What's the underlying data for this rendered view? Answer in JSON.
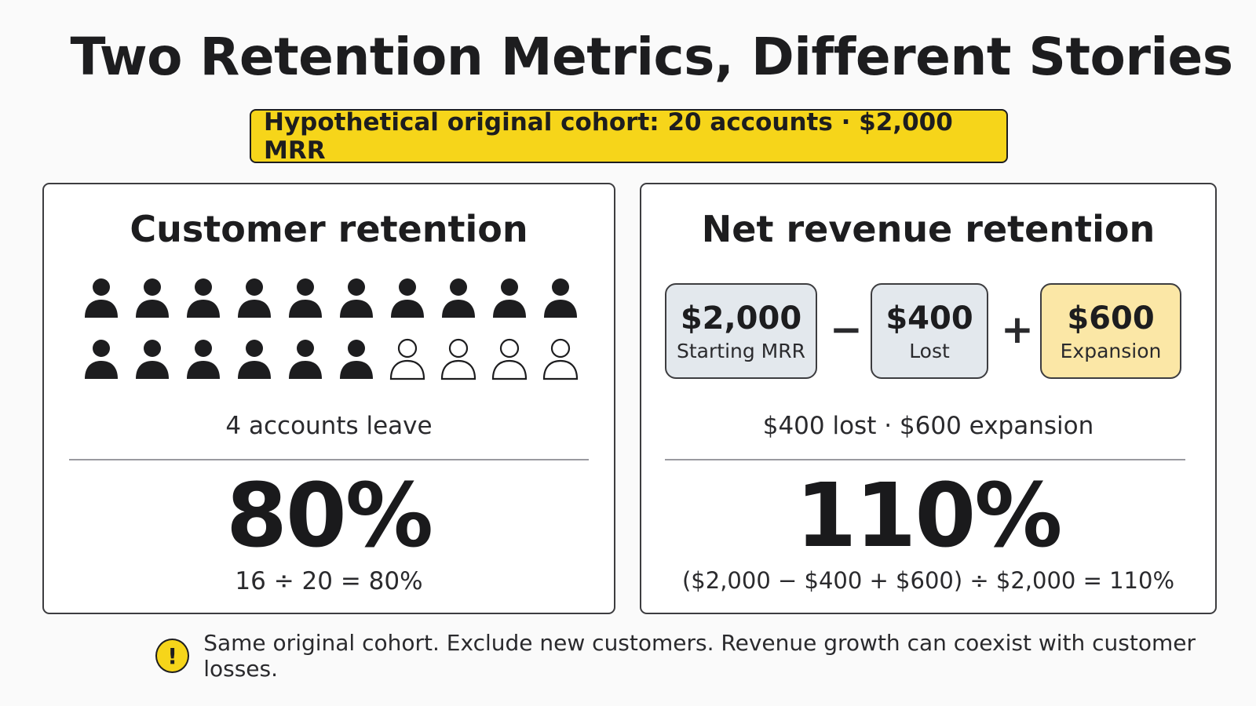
{
  "title": "Two Retention Metrics, Different Stories",
  "banner": "Hypothetical original cohort: 20 accounts · $2,000 MRR",
  "customer_retention": {
    "title": "Customer retention",
    "total_accounts": 20,
    "retained_accounts": 16,
    "description": "4 accounts leave",
    "big_value": "80%",
    "formula": "16 ÷ 20 = 80%"
  },
  "net_revenue_retention": {
    "title": "Net revenue retention",
    "boxes": [
      {
        "value": "$2,000",
        "label": "Starting MRR"
      },
      {
        "value": "$400",
        "label": "Lost"
      },
      {
        "value": "$600",
        "label": "Expansion"
      }
    ],
    "operators": [
      "−",
      "+"
    ],
    "description": "$400 lost · $600 expansion",
    "big_value": "110%",
    "formula": "($2,000 − $400 + $600) ÷ $2,000 = 110%"
  },
  "footer": {
    "icon": "warning-icon",
    "icon_glyph": "!",
    "text": "Same original cohort. Exclude new customers. Revenue growth can coexist with customer losses."
  },
  "colors": {
    "accent_yellow": "#f6d51a",
    "expansion_box": "#fbe7a6",
    "neutral_box": "#e3e8ed",
    "ink": "#1d1d1f"
  }
}
